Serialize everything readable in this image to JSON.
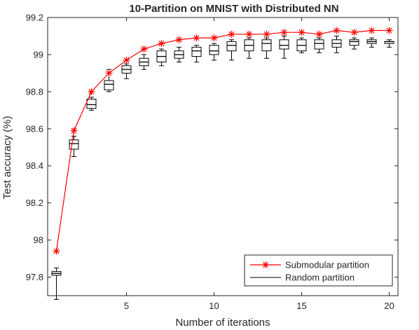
{
  "chart_data": {
    "type": "line",
    "title": "10-Partition on MNIST with Distributed NN",
    "xlabel": "Number of iterations",
    "ylabel": "Test accuracy (%)",
    "xlim": [
      0.5,
      20.5
    ],
    "ylim": [
      97.7,
      99.2
    ],
    "xticks": [
      5,
      10,
      15,
      20
    ],
    "yticks": [
      97.8,
      98.0,
      98.2,
      98.4,
      98.6,
      98.8,
      99.0,
      99.2
    ],
    "ytick_labels": [
      "97.8",
      "98",
      "98.2",
      "98.4",
      "98.6",
      "98.8",
      "99",
      "99.2"
    ],
    "grid": false,
    "legend_position": "bottom-right",
    "series": [
      {
        "name": "Submodular partition",
        "kind": "line-marker",
        "color": "#ff0000",
        "marker": "asterisk",
        "x": [
          1,
          2,
          3,
          4,
          5,
          6,
          7,
          8,
          9,
          10,
          11,
          12,
          13,
          14,
          15,
          16,
          17,
          18,
          19,
          20
        ],
        "values": [
          97.94,
          98.59,
          98.8,
          98.9,
          98.97,
          99.03,
          99.06,
          99.08,
          99.09,
          99.09,
          99.11,
          99.11,
          99.11,
          99.12,
          99.12,
          99.11,
          99.13,
          99.12,
          99.13,
          99.13
        ]
      },
      {
        "name": "Random partition",
        "kind": "boxplot",
        "color": "#000000",
        "x": [
          1,
          2,
          3,
          4,
          5,
          6,
          7,
          8,
          9,
          10,
          11,
          12,
          13,
          14,
          15,
          16,
          17,
          18,
          19,
          20
        ],
        "boxes": [
          {
            "min": 97.68,
            "q1": 97.81,
            "median": 97.82,
            "q3": 97.83,
            "max": 97.85
          },
          {
            "min": 98.45,
            "q1": 98.49,
            "median": 98.52,
            "q3": 98.54,
            "max": 98.56
          },
          {
            "min": 98.7,
            "q1": 98.71,
            "median": 98.73,
            "q3": 98.76,
            "max": 98.77
          },
          {
            "min": 98.8,
            "q1": 98.81,
            "median": 98.84,
            "q3": 98.86,
            "max": 98.92
          },
          {
            "min": 98.87,
            "q1": 98.9,
            "median": 98.92,
            "q3": 98.94,
            "max": 98.95
          },
          {
            "min": 98.92,
            "q1": 98.94,
            "median": 98.96,
            "q3": 98.98,
            "max": 99.0
          },
          {
            "min": 98.94,
            "q1": 98.96,
            "median": 98.99,
            "q3": 99.02,
            "max": 99.03
          },
          {
            "min": 98.96,
            "q1": 98.98,
            "median": 99.0,
            "q3": 99.02,
            "max": 99.04
          },
          {
            "min": 98.96,
            "q1": 98.99,
            "median": 99.02,
            "q3": 99.04,
            "max": 99.05
          },
          {
            "min": 98.97,
            "q1": 99.0,
            "median": 99.02,
            "q3": 99.05,
            "max": 99.06
          },
          {
            "min": 98.97,
            "q1": 99.02,
            "median": 99.05,
            "q3": 99.07,
            "max": 99.08
          },
          {
            "min": 98.98,
            "q1": 99.02,
            "median": 99.05,
            "q3": 99.08,
            "max": 99.09
          },
          {
            "min": 98.98,
            "q1": 99.02,
            "median": 99.06,
            "q3": 99.08,
            "max": 99.09
          },
          {
            "min": 98.98,
            "q1": 99.03,
            "median": 99.05,
            "q3": 99.08,
            "max": 99.1
          },
          {
            "min": 99.01,
            "q1": 99.02,
            "median": 99.05,
            "q3": 99.08,
            "max": 99.09
          },
          {
            "min": 99.01,
            "q1": 99.03,
            "median": 99.06,
            "q3": 99.08,
            "max": 99.09
          },
          {
            "min": 99.01,
            "q1": 99.04,
            "median": 99.06,
            "q3": 99.08,
            "max": 99.1
          },
          {
            "min": 99.03,
            "q1": 99.05,
            "median": 99.07,
            "q3": 99.08,
            "max": 99.09
          },
          {
            "min": 99.04,
            "q1": 99.06,
            "median": 99.07,
            "q3": 99.08,
            "max": 99.09
          },
          {
            "min": 99.04,
            "q1": 99.06,
            "median": 99.07,
            "q3": 99.07,
            "max": 99.08
          }
        ]
      }
    ]
  }
}
